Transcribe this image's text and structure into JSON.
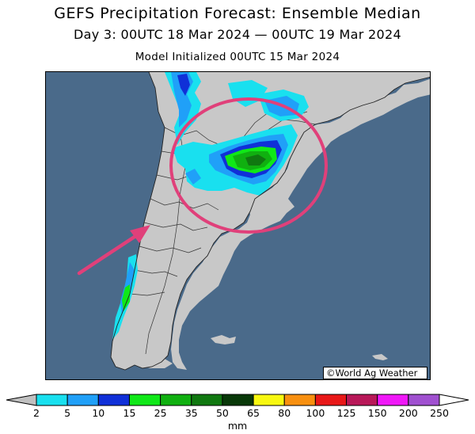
{
  "title": "GEFS Precipitation Forecast: Ensemble Median",
  "valid_period": "Day 3: 00UTC 18 Mar 2024 — 00UTC 19 Mar 2024",
  "init_text": "Model Initialized 00UTC 15 Mar 2024",
  "credit": "©World Ag Weather",
  "map": {
    "region": "Southern South America",
    "ocean_color": "#4a6a8a",
    "land_color": "#c8c8c8",
    "highlight_annotation": {
      "shape": "ellipse",
      "color": "#e0407a"
    },
    "pointer_annotation": {
      "shape": "arrow",
      "color": "#e0407a"
    }
  },
  "legend": {
    "units": "mm",
    "ticks": [
      "2",
      "5",
      "10",
      "15",
      "25",
      "35",
      "50",
      "65",
      "80",
      "100",
      "125",
      "150",
      "200",
      "250"
    ],
    "under_color": "#c0c0c0",
    "over_color": "#ffffff",
    "colors": [
      "#19e0ef",
      "#20a0f8",
      "#1030d8",
      "#10e818",
      "#10b010",
      "#107810",
      "#083808",
      "#f8f810",
      "#f89010",
      "#e81818",
      "#b81858",
      "#f018f8",
      "#a050d0"
    ]
  }
}
